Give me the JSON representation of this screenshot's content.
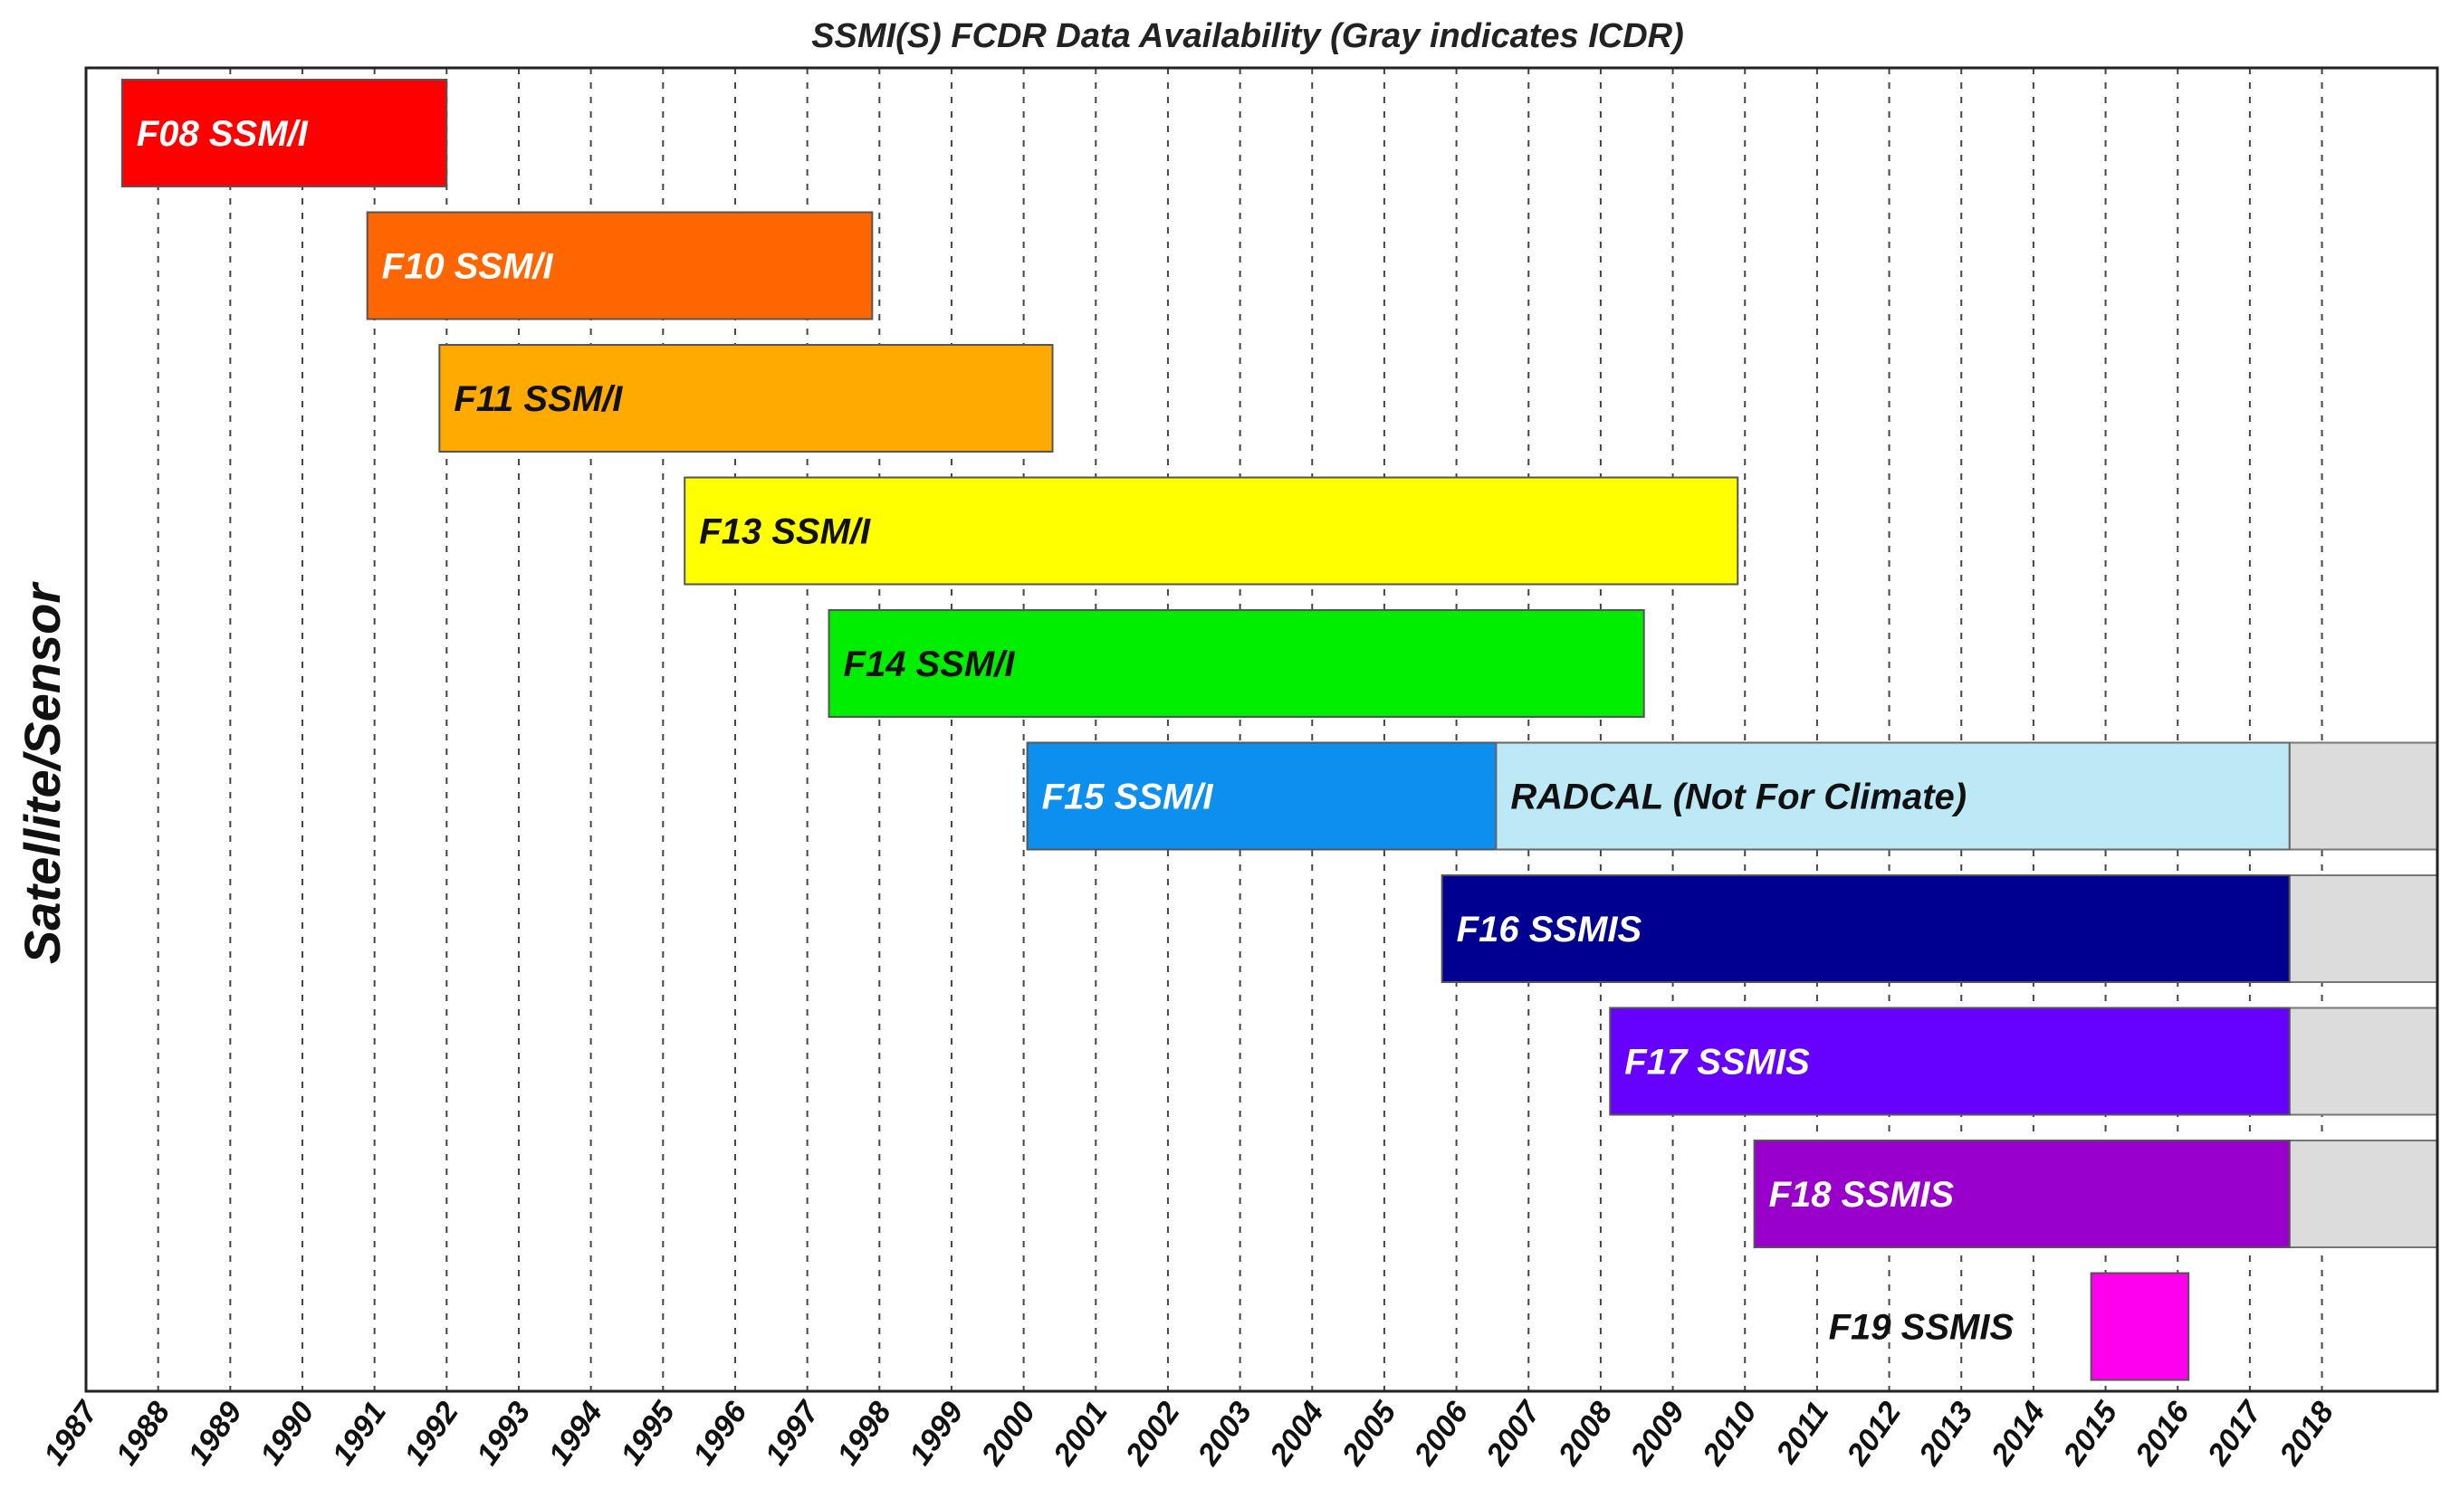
{
  "chart_data": {
    "type": "timeline",
    "title": "SSMI(S) FCDR Data Availability (Gray indicates ICDR)",
    "ylabel": "Satellite/Sensor",
    "xlabel": "",
    "xlim": [
      1987,
      2019.6
    ],
    "ticks": [
      "1987",
      "1988",
      "1989",
      "1990",
      "1991",
      "1992",
      "1993",
      "1994",
      "1995",
      "1996",
      "1997",
      "1998",
      "1999",
      "2000",
      "2001",
      "2002",
      "2003",
      "2004",
      "2005",
      "2006",
      "2007",
      "2008",
      "2009",
      "2010",
      "2011",
      "2012",
      "2013",
      "2014",
      "2015",
      "2016",
      "2017",
      "2018"
    ],
    "grid": true,
    "bars": [
      {
        "name": "F08 SSM/I",
        "start": 1987.5,
        "end": 1992.0,
        "color": "#ff0000",
        "label_color": "#ffffff"
      },
      {
        "name": "F10 SSM/I",
        "start": 1990.9,
        "end": 1997.9,
        "color": "#ff6600",
        "label_color": "#ffffff"
      },
      {
        "name": "F11 SSM/I",
        "start": 1991.9,
        "end": 2000.4,
        "color": "#ffaa00",
        "label_color": "#111111"
      },
      {
        "name": "F13 SSM/I",
        "start": 1995.3,
        "end": 2009.9,
        "color": "#ffff00",
        "label_color": "#111111"
      },
      {
        "name": "F14 SSM/I",
        "start": 1997.3,
        "end": 2008.6,
        "color": "#00ee00",
        "label_color": "#111111"
      },
      {
        "name": "F15 SSM/I",
        "start": 2000.05,
        "end": 2006.55,
        "color": "#0d8ff0",
        "label_color": "#ffffff"
      },
      {
        "name": "F16 SSMIS",
        "start": 2005.8,
        "end": 2017.55,
        "color": "#000090",
        "label_color": "#ffffff"
      },
      {
        "name": "F17 SSMIS",
        "start": 2008.13,
        "end": 2017.55,
        "color": "#6600ff",
        "label_color": "#ffffff"
      },
      {
        "name": "F18 SSMIS",
        "start": 2010.13,
        "end": 2017.55,
        "color": "#9900cc",
        "label_color": "#ffffff"
      },
      {
        "name": "F19 SSMIS",
        "start": 2014.8,
        "end": 2016.15,
        "color": "#ff00ee",
        "label_color": "#111111",
        "label_outside": true
      }
    ],
    "radcal": {
      "name": "RADCAL (Not For Climate)",
      "row": 5,
      "start": 2006.55,
      "end": 2017.55,
      "color": "#bde9f7",
      "label_color": "#111111"
    },
    "icdr": [
      {
        "row": 5,
        "start": 2017.55,
        "end": 2019.6,
        "color": "#dcdcdc"
      },
      {
        "row": 6,
        "start": 2017.55,
        "end": 2019.6,
        "color": "#dcdcdc"
      },
      {
        "row": 7,
        "start": 2017.55,
        "end": 2019.6,
        "color": "#dcdcdc"
      },
      {
        "row": 8,
        "start": 2017.55,
        "end": 2019.6,
        "color": "#dcdcdc"
      }
    ]
  }
}
